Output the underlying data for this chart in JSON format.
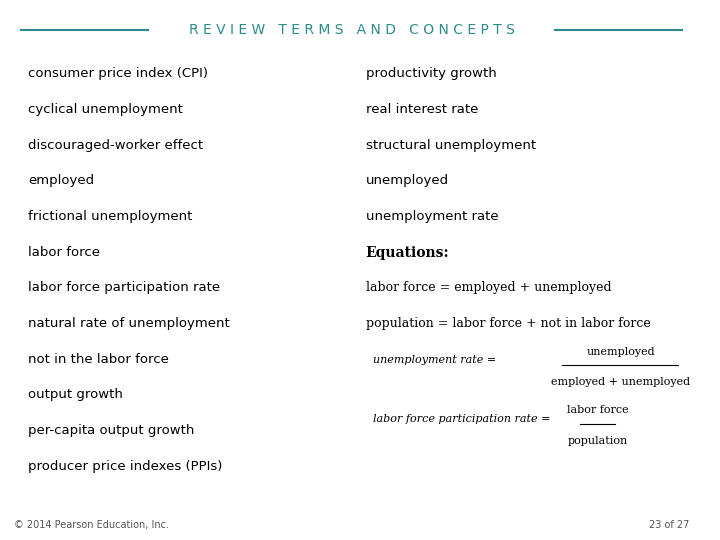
{
  "title": "REVIEW TERMS AND CONCEPTS",
  "title_color": "#2e8b8b",
  "background_color": "#ffffff",
  "left_terms": [
    "consumer price index (CPI)",
    "cyclical unemployment",
    "discouraged-worker effect",
    "employed",
    "frictional unemployment",
    "labor force",
    "labor force participation rate",
    "natural rate of unemployment",
    "not in the labor force",
    "output growth",
    "per-capita output growth",
    "producer price indexes (PPIs)"
  ],
  "right_terms": [
    "productivity growth",
    "real interest rate",
    "structural unemployment",
    "unemployed",
    "unemployment rate"
  ],
  "equations_label": "Equations:",
  "eq1": "labor force = employed + unemployed",
  "eq2": "population = labor force + not in labor force",
  "eq3_left": "unemployment rate = ",
  "eq3_num": "unemployed",
  "eq3_den": "employed + unemployed",
  "eq4_left": "labor force participation rate = ",
  "eq4_num": "labor force",
  "eq4_den": "population",
  "footer_left": "© 2014 Pearson Education, Inc.",
  "footer_right": "23 of 27",
  "text_color": "#000000",
  "footer_color": "#555555"
}
